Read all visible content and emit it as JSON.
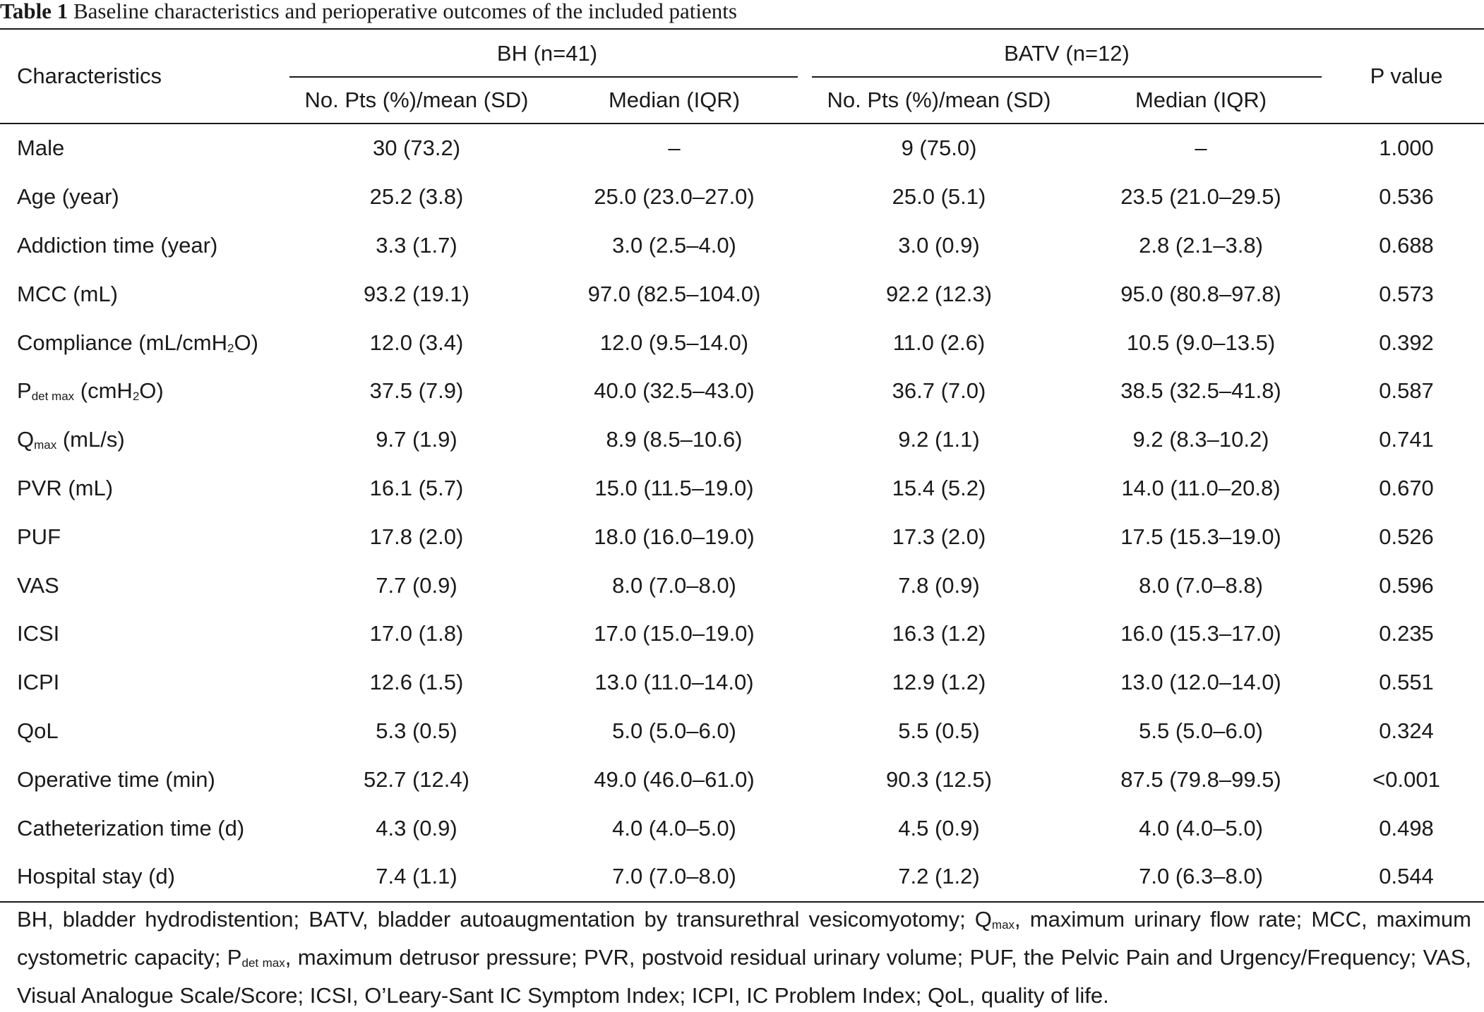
{
  "caption": {
    "number": "Table 1",
    "text": "Baseline characteristics and perioperative outcomes of the included patients"
  },
  "header": {
    "characteristics": "Characteristics",
    "groups": [
      "BH (n=41)",
      "BATV (n=12)"
    ],
    "subcolumns": [
      "No. Pts (%)/mean (SD)",
      "Median (IQR)",
      "No. Pts (%)/mean (SD)",
      "Median (IQR)"
    ],
    "pvalue": "P value"
  },
  "rows": [
    {
      "label": "Male",
      "cells": [
        "30 (73.2)",
        "–",
        "9 (75.0)",
        "–",
        "1.000"
      ]
    },
    {
      "label": "Age (year)",
      "cells": [
        "25.2 (3.8)",
        "25.0 (23.0–27.0)",
        "25.0 (5.1)",
        "23.5 (21.0–29.5)",
        "0.536"
      ]
    },
    {
      "label": "Addiction time (year)",
      "cells": [
        "3.3 (1.7)",
        "3.0 (2.5–4.0)",
        "3.0 (0.9)",
        "2.8 (2.1–3.8)",
        "0.688"
      ]
    },
    {
      "label": "MCC (mL)",
      "cells": [
        "93.2 (19.1)",
        "97.0 (82.5–104.0)",
        "92.2 (12.3)",
        "95.0 (80.8–97.8)",
        "0.573"
      ]
    },
    {
      "label_parts": [
        "Compliance (mL/cmH",
        "2",
        "O)"
      ],
      "cells": [
        "12.0 (3.4)",
        "12.0 (9.5–14.0)",
        "11.0 (2.6)",
        "10.5 (9.0–13.5)",
        "0.392"
      ]
    },
    {
      "label_parts": [
        "P",
        "det max",
        " (cmH",
        "2",
        "O)"
      ],
      "cells": [
        "37.5 (7.9)",
        "40.0 (32.5–43.0)",
        "36.7 (7.0)",
        "38.5 (32.5–41.8)",
        "0.587"
      ]
    },
    {
      "label_parts": [
        "Q",
        "max",
        " (mL/s)"
      ],
      "cells": [
        "9.7 (1.9)",
        "8.9 (8.5–10.6)",
        "9.2 (1.1)",
        "9.2 (8.3–10.2)",
        "0.741"
      ]
    },
    {
      "label": "PVR (mL)",
      "cells": [
        "16.1 (5.7)",
        "15.0 (11.5–19.0)",
        "15.4 (5.2)",
        "14.0 (11.0–20.8)",
        "0.670"
      ]
    },
    {
      "label": "PUF",
      "cells": [
        "17.8 (2.0)",
        "18.0 (16.0–19.0)",
        "17.3 (2.0)",
        "17.5 (15.3–19.0)",
        "0.526"
      ]
    },
    {
      "label": "VAS",
      "cells": [
        "7.7 (0.9)",
        "8.0 (7.0–8.0)",
        "7.8 (0.9)",
        "8.0 (7.0–8.8)",
        "0.596"
      ]
    },
    {
      "label": "ICSI",
      "cells": [
        "17.0 (1.8)",
        "17.0 (15.0–19.0)",
        "16.3 (1.2)",
        "16.0 (15.3–17.0)",
        "0.235"
      ]
    },
    {
      "label": "ICPI",
      "cells": [
        "12.6 (1.5)",
        "13.0 (11.0–14.0)",
        "12.9 (1.2)",
        "13.0 (12.0–14.0)",
        "0.551"
      ]
    },
    {
      "label": "QoL",
      "cells": [
        "5.3 (0.5)",
        "5.0 (5.0–6.0)",
        "5.5 (0.5)",
        "5.5 (5.0–6.0)",
        "0.324"
      ]
    },
    {
      "label": "Operative time (min)",
      "cells": [
        "52.7 (12.4)",
        "49.0 (46.0–61.0)",
        "90.3 (12.5)",
        "87.5 (79.8–99.5)",
        "<0.001"
      ]
    },
    {
      "label": "Catheterization time (d)",
      "cells": [
        "4.3 (0.9)",
        "4.0 (4.0–5.0)",
        "4.5 (0.9)",
        "4.0 (4.0–5.0)",
        "0.498"
      ]
    },
    {
      "label": "Hospital stay (d)",
      "cells": [
        "7.4 (1.1)",
        "7.0 (7.0–8.0)",
        "7.2 (1.2)",
        "7.0 (6.3–8.0)",
        "0.544"
      ]
    }
  ],
  "footnote": {
    "part1": "BH, bladder hydrodistention; BATV, bladder autoaugmentation by transurethral vesicomyotomy; Q",
    "qmax_sub": "max",
    "part2": ", maximum urinary flow rate; MCC, maximum cystometric capacity; P",
    "pdet_sub": "det max",
    "part3": ", maximum detrusor pressure; PVR, postvoid residual urinary volume; PUF, the Pelvic Pain and Urgency/Frequency; VAS, Visual Analogue Scale/Score; ICSI, O’Leary-Sant IC Symptom Index; ICPI, IC Problem Index; QoL, quality of life."
  }
}
